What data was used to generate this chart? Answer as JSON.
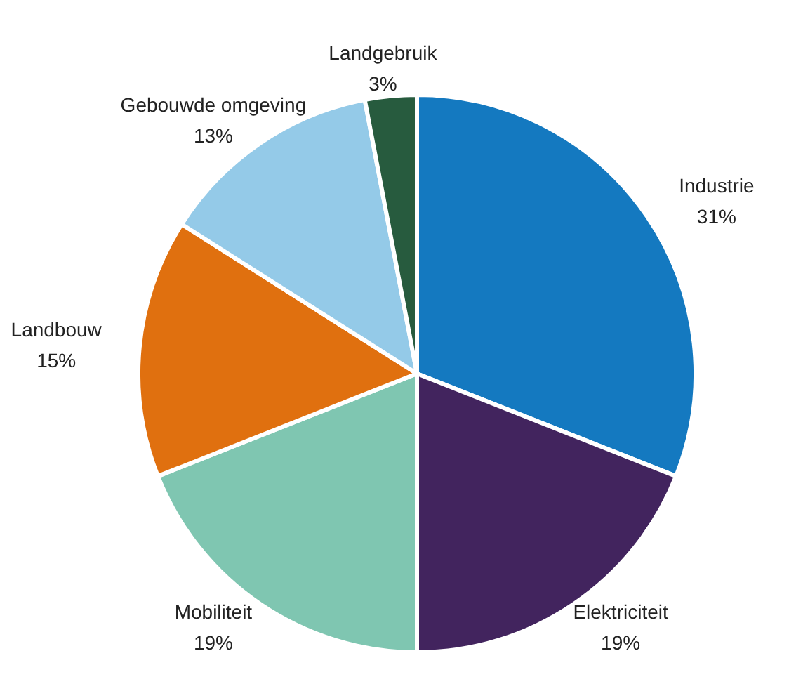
{
  "chart_data": {
    "type": "pie",
    "categories": [
      "Industrie",
      "Elektriciteit",
      "Mobiliteit",
      "Landbouw",
      "Gebouwde omgeving",
      "Landgebruik"
    ],
    "values": [
      31,
      19,
      19,
      15,
      13,
      3
    ],
    "value_labels": [
      "31%",
      "19%",
      "19%",
      "15%",
      "13%",
      "3%"
    ],
    "colors": [
      "#1479c0",
      "#42245e",
      "#7fc6b1",
      "#e0700f",
      "#94cae8",
      "#275b3e"
    ],
    "legend": false
  }
}
